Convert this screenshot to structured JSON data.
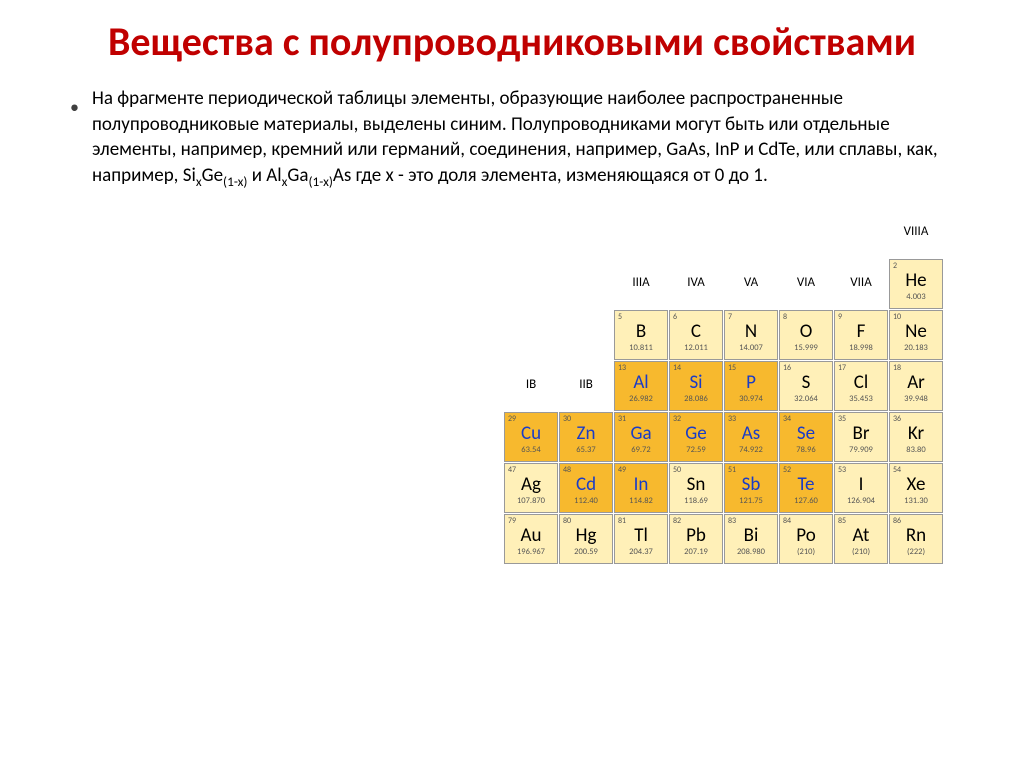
{
  "title": {
    "text": "Вещества с полупроводниковыми свойствами",
    "color": "#c00000",
    "fontsize": 40
  },
  "bullet": {
    "glyph": "•",
    "color": "#404040",
    "fontsize": 18
  },
  "body": {
    "fontsize": 19,
    "color": "#000000",
    "p1": "На фрагменте периодической таблицы элементы, образующие наиболее распространенные полупроводниковые материалы, выделены синим. Полупроводниками могут быть или отдельные элементы, например, кремний или германий, соединения, например, GaAs, InP и CdTe, или сплавы, как, например, Si",
    "sub1": "x",
    "p2": "Ge",
    "sub2": "(1-x)",
    "p3": " и Al",
    "sub3": "x",
    "p4": "Ga",
    "sub4": "(1-x)",
    "p5": "As где x - это доля элемента, изменяющаяся от 0 до 1."
  },
  "ptable": {
    "header_fontsize": 13,
    "colors": {
      "light": "#fff0b8",
      "dark": "#f7b92e",
      "border": "#999999",
      "symbol_blue": "#1a3cc7",
      "symbol_black": "#000000",
      "num_color": "#555555"
    },
    "headers": {
      "IB": "IB",
      "IIB": "IIB",
      "IIIA": "IIIA",
      "IVA": "IVA",
      "VA": "VA",
      "VIA": "VIA",
      "VIIA": "VIIA",
      "VIIIA": "VIIIA"
    },
    "cells": {
      "He": {
        "num": "2",
        "sym": "He",
        "mass": "4.003",
        "bg": "light",
        "blue": false
      },
      "B": {
        "num": "5",
        "sym": "B",
        "mass": "10.811",
        "bg": "light",
        "blue": false
      },
      "C": {
        "num": "6",
        "sym": "C",
        "mass": "12.011",
        "bg": "light",
        "blue": false
      },
      "N": {
        "num": "7",
        "sym": "N",
        "mass": "14.007",
        "bg": "light",
        "blue": false
      },
      "O": {
        "num": "8",
        "sym": "O",
        "mass": "15.999",
        "bg": "light",
        "blue": false
      },
      "F": {
        "num": "9",
        "sym": "F",
        "mass": "18.998",
        "bg": "light",
        "blue": false
      },
      "Ne": {
        "num": "10",
        "sym": "Ne",
        "mass": "20.183",
        "bg": "light",
        "blue": false
      },
      "Al": {
        "num": "13",
        "sym": "Al",
        "mass": "26.982",
        "bg": "dark",
        "blue": true
      },
      "Si": {
        "num": "14",
        "sym": "Si",
        "mass": "28.086",
        "bg": "dark",
        "blue": true
      },
      "P": {
        "num": "15",
        "sym": "P",
        "mass": "30.974",
        "bg": "dark",
        "blue": true
      },
      "S": {
        "num": "16",
        "sym": "S",
        "mass": "32.064",
        "bg": "light",
        "blue": false
      },
      "Cl": {
        "num": "17",
        "sym": "Cl",
        "mass": "35.453",
        "bg": "light",
        "blue": false
      },
      "Ar": {
        "num": "18",
        "sym": "Ar",
        "mass": "39.948",
        "bg": "light",
        "blue": false
      },
      "Cu": {
        "num": "29",
        "sym": "Cu",
        "mass": "63.54",
        "bg": "dark",
        "blue": true
      },
      "Zn": {
        "num": "30",
        "sym": "Zn",
        "mass": "65.37",
        "bg": "dark",
        "blue": true
      },
      "Ga": {
        "num": "31",
        "sym": "Ga",
        "mass": "69.72",
        "bg": "dark",
        "blue": true
      },
      "Ge": {
        "num": "32",
        "sym": "Ge",
        "mass": "72.59",
        "bg": "dark",
        "blue": true
      },
      "As": {
        "num": "33",
        "sym": "As",
        "mass": "74.922",
        "bg": "dark",
        "blue": true
      },
      "Se": {
        "num": "34",
        "sym": "Se",
        "mass": "78.96",
        "bg": "dark",
        "blue": true
      },
      "Br": {
        "num": "35",
        "sym": "Br",
        "mass": "79.909",
        "bg": "light",
        "blue": false
      },
      "Kr": {
        "num": "36",
        "sym": "Kr",
        "mass": "83.80",
        "bg": "light",
        "blue": false
      },
      "Ag": {
        "num": "47",
        "sym": "Ag",
        "mass": "107.870",
        "bg": "light",
        "blue": false
      },
      "Cd": {
        "num": "48",
        "sym": "Cd",
        "mass": "112.40",
        "bg": "dark",
        "blue": true
      },
      "In": {
        "num": "49",
        "sym": "In",
        "mass": "114.82",
        "bg": "dark",
        "blue": true
      },
      "Sn": {
        "num": "50",
        "sym": "Sn",
        "mass": "118.69",
        "bg": "light",
        "blue": false
      },
      "Sb": {
        "num": "51",
        "sym": "Sb",
        "mass": "121.75",
        "bg": "dark",
        "blue": true
      },
      "Te": {
        "num": "52",
        "sym": "Te",
        "mass": "127.60",
        "bg": "dark",
        "blue": true
      },
      "I": {
        "num": "53",
        "sym": "I",
        "mass": "126.904",
        "bg": "light",
        "blue": false
      },
      "Xe": {
        "num": "54",
        "sym": "Xe",
        "mass": "131.30",
        "bg": "light",
        "blue": false
      },
      "Au": {
        "num": "79",
        "sym": "Au",
        "mass": "196.967",
        "bg": "light",
        "blue": false
      },
      "Hg": {
        "num": "80",
        "sym": "Hg",
        "mass": "200.59",
        "bg": "light",
        "blue": false
      },
      "Tl": {
        "num": "81",
        "sym": "Tl",
        "mass": "204.37",
        "bg": "light",
        "blue": false
      },
      "Pb": {
        "num": "82",
        "sym": "Pb",
        "mass": "207.19",
        "bg": "light",
        "blue": false
      },
      "Bi": {
        "num": "83",
        "sym": "Bi",
        "mass": "208.980",
        "bg": "light",
        "blue": false
      },
      "Po": {
        "num": "84",
        "sym": "Po",
        "mass": "(210)",
        "bg": "light",
        "blue": false
      },
      "At": {
        "num": "85",
        "sym": "At",
        "mass": "(210)",
        "bg": "light",
        "blue": false
      },
      "Rn": {
        "num": "86",
        "sym": "Rn",
        "mass": "(222)",
        "bg": "light",
        "blue": false
      }
    }
  }
}
